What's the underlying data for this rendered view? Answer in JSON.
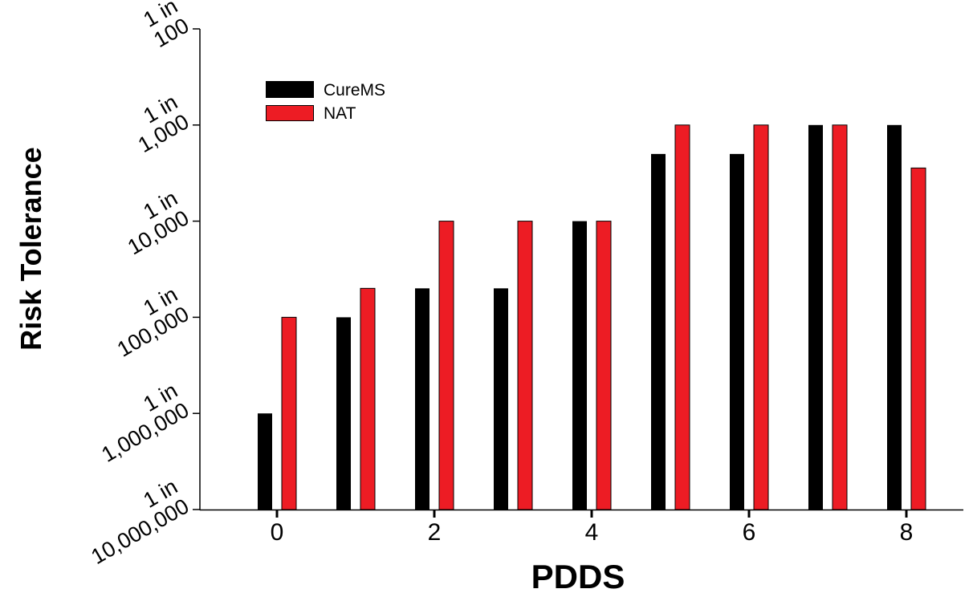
{
  "chart_data": {
    "type": "bar",
    "xlabel": "PDDS",
    "ylabel": "Risk Tolerance",
    "y_scale": "log",
    "y_ticks": [
      {
        "value": 10000000,
        "line1": "1 in",
        "line2": "10,000,000"
      },
      {
        "value": 1000000,
        "line1": "1 in",
        "line2": "1,000,000"
      },
      {
        "value": 100000,
        "line1": "1 in",
        "line2": "100,000"
      },
      {
        "value": 10000,
        "line1": "1 in",
        "line2": "10,000"
      },
      {
        "value": 1000,
        "line1": "1 in",
        "line2": "1,000"
      },
      {
        "value": 100,
        "line1": "1 in",
        "line2": "100"
      }
    ],
    "x_ticks": [
      "0",
      "2",
      "4",
      "6",
      "8"
    ],
    "x_tick_values": [
      0,
      2,
      4,
      6,
      8
    ],
    "categories": [
      0,
      1,
      2,
      3,
      4,
      5,
      6,
      7,
      8
    ],
    "series": [
      {
        "name": "CureMS",
        "color": "#000000",
        "values": [
          1000000,
          100000,
          50000,
          50000,
          10000,
          2000,
          2000,
          1000,
          1000
        ]
      },
      {
        "name": "NAT",
        "color": "#ed1c24",
        "values": [
          100000,
          50000,
          10000,
          10000,
          10000,
          1000,
          1000,
          1000,
          2800
        ]
      }
    ],
    "legend": {
      "position": "top-left"
    },
    "grid": false
  }
}
